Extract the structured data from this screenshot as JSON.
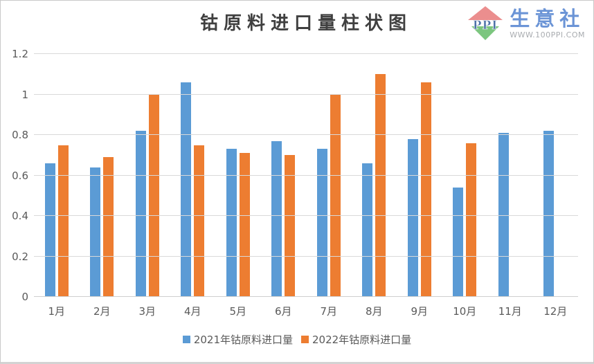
{
  "header": {
    "title": "钴原料进口量柱状图",
    "logo": {
      "ppi": "PPI",
      "brand": "生意社",
      "url": "WWW.100PPI.COM"
    }
  },
  "colors": {
    "series1_blue": "#5B9BD5",
    "series2_orange": "#ED7D31",
    "gridline": "#D9D9D9",
    "axis_text": "#595959",
    "title_text": "#404040",
    "logo_red": "#EB8E8E",
    "logo_green": "#7CC67F",
    "logo_ppi_blue": "#4E72A8",
    "brand_blue": "#6B94D6",
    "url_gray": "#A9ACB0"
  },
  "chart_data": {
    "type": "bar",
    "title": "钴原料进口量柱状图",
    "categories": [
      "1月",
      "2月",
      "3月",
      "4月",
      "5月",
      "6月",
      "7月",
      "8月",
      "9月",
      "10月",
      "11月",
      "12月"
    ],
    "series": [
      {
        "name": "2021年钴原料进口量",
        "color": "#5B9BD5",
        "values": [
          0.66,
          0.64,
          0.82,
          1.06,
          0.73,
          0.77,
          0.73,
          0.66,
          0.78,
          0.54,
          0.81,
          0.82
        ]
      },
      {
        "name": "2022年钴原料进口量",
        "color": "#ED7D31",
        "values": [
          0.75,
          0.69,
          1.0,
          0.75,
          0.71,
          0.7,
          1.0,
          1.1,
          1.06,
          0.76,
          null,
          null
        ]
      }
    ],
    "xlabel": "",
    "ylabel": "",
    "ylim": [
      0,
      1.2
    ],
    "ytick_step": 0.2,
    "yticks": [
      "0",
      "0.2",
      "0.4",
      "0.6",
      "0.8",
      "1",
      "1.2"
    ],
    "grid": true,
    "legend_position": "bottom"
  }
}
